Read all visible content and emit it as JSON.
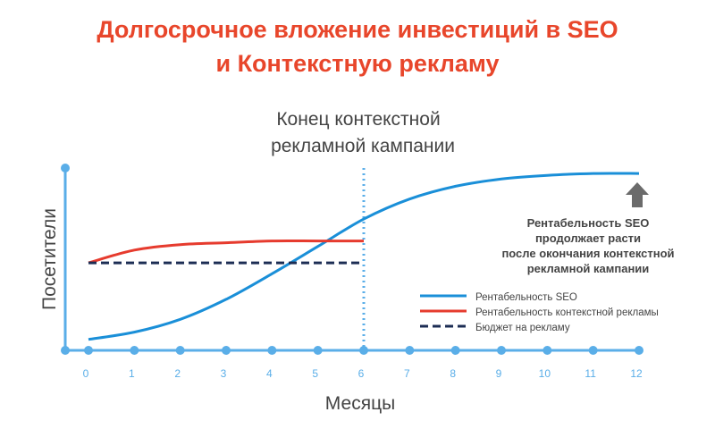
{
  "chart_data": {
    "type": "line",
    "title_lines": [
      "Долгосрочное вложение инвестиций в SEO",
      "и Контекстную рекламу"
    ],
    "xlabel": "Месяцы",
    "ylabel": "Посетители",
    "x_ticks": [
      "0",
      "1",
      "2",
      "3",
      "4",
      "5",
      "6",
      "7",
      "8",
      "9",
      "10",
      "11",
      "12"
    ],
    "xlim": [
      0,
      12
    ],
    "ylim": [
      0,
      100
    ],
    "grid": false,
    "legend_position": "right",
    "series": [
      {
        "name": "Рентабельность SEO",
        "style": "solid",
        "color": "#1a8fd8",
        "x": [
          0,
          1,
          2,
          3,
          4,
          5,
          6,
          7,
          8,
          9,
          10,
          11,
          12
        ],
        "y": [
          6,
          10,
          17,
          28,
          42,
          57,
          72,
          83,
          90,
          94,
          96,
          97,
          97
        ]
      },
      {
        "name": "Рентабельность контекстной рекламы",
        "style": "solid",
        "color": "#e63b2e",
        "x": [
          0,
          1,
          2,
          3,
          4,
          5,
          6
        ],
        "y": [
          48,
          55,
          58,
          59,
          60,
          60,
          60
        ]
      },
      {
        "name": "Бюджет на рекламу",
        "style": "dashed",
        "color": "#1c2d54",
        "x": [
          0,
          6
        ],
        "y": [
          48,
          48
        ]
      }
    ],
    "annotations": [
      {
        "id": "campaign-end",
        "type": "vline",
        "x": 6,
        "color": "#5aaee8",
        "lines": [
          "Конец контекстной",
          "рекламной кампании"
        ]
      },
      {
        "id": "seo-note",
        "type": "arrow-note",
        "x": 12,
        "lines": [
          "Рентабельность SEO",
          "продолжает расти",
          "после окончания контекстной",
          "рекламной кампании"
        ]
      }
    ],
    "colors": {
      "title": "#e8462b",
      "axis": "#5aaee8",
      "tick_label": "#5aaee8",
      "text": "#444444",
      "arrow": "#6b6b6b"
    }
  }
}
